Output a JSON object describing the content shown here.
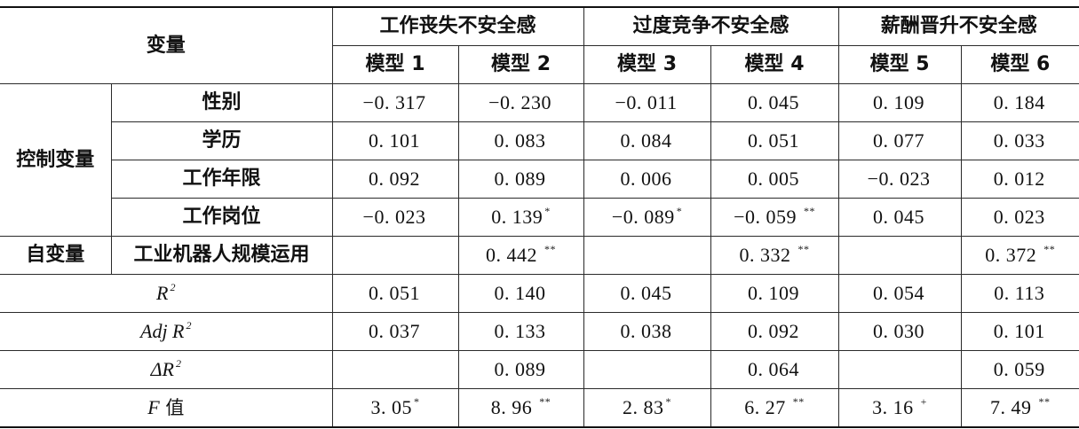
{
  "header": {
    "variable_label": "变量",
    "groups": [
      "工作丧失不安全感",
      "过度竞争不安全感",
      "薪酬晋升不安全感"
    ],
    "models": [
      "模型 1",
      "模型 2",
      "模型 3",
      "模型 4",
      "模型 5",
      "模型 6"
    ]
  },
  "control": {
    "group_label": "控制变量",
    "rows": [
      {
        "label": "性别",
        "cells": [
          [
            "−0. 317",
            ""
          ],
          [
            "−0. 230",
            ""
          ],
          [
            "−0. 011",
            ""
          ],
          [
            "0. 045",
            ""
          ],
          [
            "0. 109",
            ""
          ],
          [
            "0. 184",
            ""
          ]
        ]
      },
      {
        "label": "学历",
        "cells": [
          [
            "0. 101",
            ""
          ],
          [
            "0. 083",
            ""
          ],
          [
            "0. 084",
            ""
          ],
          [
            "0. 051",
            ""
          ],
          [
            "0. 077",
            ""
          ],
          [
            "0. 033",
            ""
          ]
        ]
      },
      {
        "label": "工作年限",
        "cells": [
          [
            "0. 092",
            ""
          ],
          [
            "0. 089",
            ""
          ],
          [
            "0. 006",
            ""
          ],
          [
            "0. 005",
            ""
          ],
          [
            "−0. 023",
            ""
          ],
          [
            "0. 012",
            ""
          ]
        ]
      },
      {
        "label": "工作岗位",
        "cells": [
          [
            "−0. 023",
            ""
          ],
          [
            "0. 139",
            "*"
          ],
          [
            "−0. 089",
            "*"
          ],
          [
            "−0. 059 ",
            "**"
          ],
          [
            "0. 045",
            ""
          ],
          [
            "0. 023",
            ""
          ]
        ]
      }
    ]
  },
  "independent": {
    "group_label": "自变量",
    "label": "工业机器人规模运用",
    "cells": [
      [
        "",
        ""
      ],
      [
        "0. 442 ",
        "**"
      ],
      [
        "",
        ""
      ],
      [
        "0. 332 ",
        "**"
      ],
      [
        "",
        ""
      ],
      [
        "0. 372 ",
        "**"
      ]
    ]
  },
  "stats": {
    "r2": {
      "label": "R",
      "sup": "2",
      "cells": [
        [
          "0. 051",
          ""
        ],
        [
          "0. 140",
          ""
        ],
        [
          "0. 045",
          ""
        ],
        [
          "0. 109",
          ""
        ],
        [
          "0. 054",
          ""
        ],
        [
          "0. 113",
          ""
        ]
      ]
    },
    "adj_r2": {
      "label": "Adj R",
      "sup": "2",
      "cells": [
        [
          "0. 037",
          ""
        ],
        [
          "0. 133",
          ""
        ],
        [
          "0. 038",
          ""
        ],
        [
          "0. 092",
          ""
        ],
        [
          "0. 030",
          ""
        ],
        [
          "0. 101",
          ""
        ]
      ]
    },
    "delta_r2": {
      "label": "ΔR",
      "sup": "2",
      "cells": [
        [
          "",
          ""
        ],
        [
          "0. 089",
          ""
        ],
        [
          "",
          ""
        ],
        [
          "0. 064",
          ""
        ],
        [
          "",
          ""
        ],
        [
          "0. 059",
          ""
        ]
      ]
    },
    "f": {
      "label_italic": "F",
      "label_cn": " 值",
      "cells": [
        [
          "3. 05",
          "*"
        ],
        [
          "8. 96 ",
          "**"
        ],
        [
          "2. 83",
          "*"
        ],
        [
          "6. 27 ",
          "**"
        ],
        [
          "3. 16 ",
          "+"
        ],
        [
          "7. 49 ",
          "**"
        ]
      ]
    }
  }
}
